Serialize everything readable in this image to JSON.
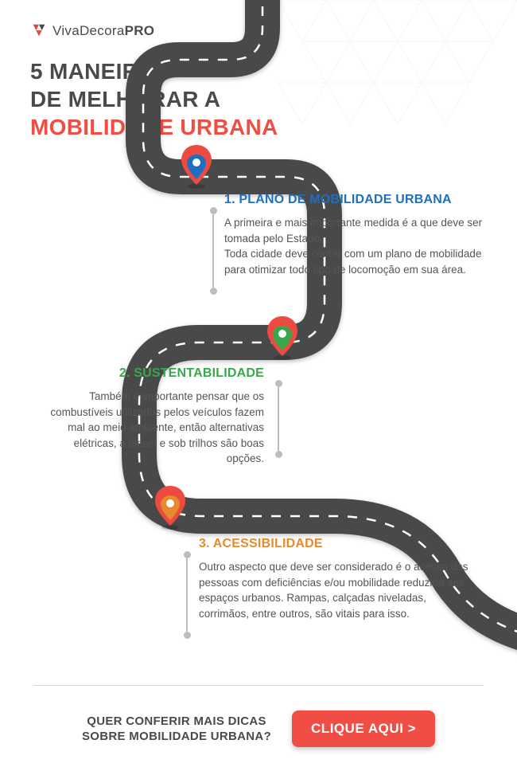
{
  "brand": {
    "name_light": "Viva",
    "name_mid": "Decora",
    "name_bold": "PRO",
    "mark_color": "#e4483f"
  },
  "colors": {
    "accent_red": "#f04e45",
    "text_dark": "#4a4a4a",
    "text_body": "#555555",
    "road": "#4a4a4a",
    "lane": "#ffffff",
    "blue": "#1e6fbf",
    "green": "#39a84a",
    "orange": "#e68a2e",
    "pin_top": "#ed4b42",
    "connector": "#bdbdbd",
    "divider": "#d9d9d9",
    "background": "#ffffff"
  },
  "title": {
    "line1": "5 MANEIRAS",
    "line2": "DE MELHORAR A",
    "line3": "MOBILIDADE URBANA"
  },
  "sections": [
    {
      "heading": "1. PLANO DE MOBILIDADE URBANA",
      "heading_color": "#1e6fbf",
      "body": "A primeira e mais importante medida é a que deve ser tomada pelo Estado.\nToda cidade deve contar com um plano de mobilidade para otimizar todo tipo de locomoção em sua área.",
      "pin_inner": "#1e6fbf"
    },
    {
      "heading": "2. SUSTENTABILIDADE",
      "heading_color": "#39a84a",
      "body": "Também é importante pensar que os combustíveis utilizados pelos veículos fazem mal ao meio ambiente, então alternativas elétricas, a diesel e sob trilhos são boas opções.",
      "pin_inner": "#39a84a"
    },
    {
      "heading": "3. ACESSIBILIDADE",
      "heading_color": "#e68a2e",
      "body": "Outro aspecto que deve ser considerado é o acesso das pessoas com deficiências e/ou mobilidade reduzida aos espaços urbanos. Rampas, calçadas niveladas, corrimãos, entre outros, são vitais para isso.",
      "pin_inner": "#e68a2e"
    }
  ],
  "cta": {
    "line1": "QUER CONFERIR MAIS DICAS",
    "line2": "SOBRE MOBILIDADE URBANA?",
    "button": "CLIQUE AQUI >"
  },
  "road_style": {
    "stroke_width": 44,
    "lane_dash": "12 12",
    "lane_width": 2.5
  }
}
